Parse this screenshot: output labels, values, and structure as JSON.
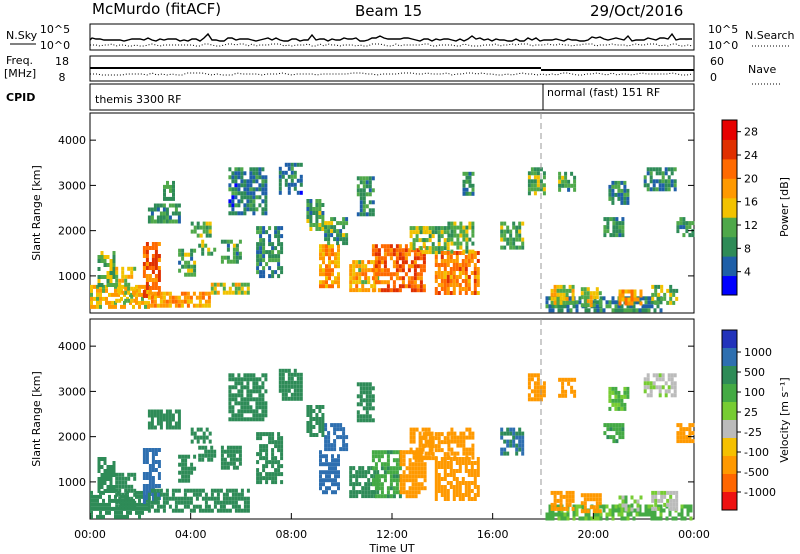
{
  "header": {
    "station": "McMurdo (fitACF)",
    "beam": "Beam 15",
    "date": "29/Oct/2016"
  },
  "summary_labels": {
    "nsky": "N.Sky",
    "freq": "Freq.",
    "freq_unit": "[MHz]",
    "cpid": "CPID",
    "nsearch": "N.Search",
    "nave": "Nave",
    "nsky_ticks": [
      "10^5",
      "10^0"
    ],
    "nsearch_ticks": [
      "10^5",
      "10^0"
    ],
    "freq_ticks": [
      "18",
      "8"
    ],
    "nave_ticks": [
      "60",
      "0"
    ],
    "cpid_segments": [
      {
        "label": "themis 3300 RF",
        "start_hour": 0
      },
      {
        "label": "normal (fast) 151 RF",
        "start_hour": 18.0
      }
    ]
  },
  "colors": {
    "power_scale": [
      "#0000ff",
      "#1e5fa8",
      "#2e8b57",
      "#4fa84a",
      "#f2c200",
      "#ff9900",
      "#ff6a00",
      "#e03000",
      "#e60000"
    ],
    "velocity_scale": [
      "#2233bb",
      "#2e6fb0",
      "#2e8b57",
      "#44aa44",
      "#77cc33",
      "#bbbbbb",
      "#f5c000",
      "#ff9900",
      "#ff6600",
      "#ee1111"
    ]
  },
  "chart_data": [
    {
      "type": "heatmap",
      "title": "",
      "xlabel": "",
      "ylabel": "Slant Range [km]",
      "xlim": [
        0,
        24
      ],
      "ylim": [
        180,
        4600
      ],
      "x_ticks": [],
      "y_ticks": [
        "1000",
        "2000",
        "3000",
        "4000"
      ],
      "colorbar": {
        "label": "Power [dB]",
        "ticks": [
          "4",
          "8",
          "12",
          "16",
          "20",
          "24",
          "28"
        ],
        "range": [
          0,
          30
        ]
      },
      "patches": [
        {
          "t0": 0.0,
          "t1": 2.3,
          "r0": 300,
          "r1": 800,
          "v": 16
        },
        {
          "t0": 0.3,
          "t1": 1.0,
          "r0": 800,
          "r1": 1550,
          "v": 12
        },
        {
          "t0": 1.0,
          "t1": 1.8,
          "r0": 450,
          "r1": 1200,
          "v": 14
        },
        {
          "t0": 2.1,
          "t1": 2.7,
          "r0": 600,
          "r1": 1750,
          "v": 22
        },
        {
          "t0": 2.3,
          "t1": 4.8,
          "r0": 350,
          "r1": 650,
          "v": 18
        },
        {
          "t0": 4.8,
          "t1": 6.3,
          "r0": 600,
          "r1": 850,
          "v": 14
        },
        {
          "t0": 3.5,
          "t1": 4.2,
          "r0": 1050,
          "r1": 1600,
          "v": 10
        },
        {
          "t0": 4.3,
          "t1": 4.9,
          "r0": 1500,
          "r1": 1800,
          "v": 12
        },
        {
          "t0": 5.2,
          "t1": 6.0,
          "r0": 1350,
          "r1": 1800,
          "v": 10
        },
        {
          "t0": 4.0,
          "t1": 4.8,
          "r0": 1850,
          "r1": 2200,
          "v": 11
        },
        {
          "t0": 2.3,
          "t1": 3.5,
          "r0": 2200,
          "r1": 2600,
          "v": 9
        },
        {
          "t0": 2.9,
          "t1": 3.3,
          "r0": 2700,
          "r1": 3100,
          "v": 8
        },
        {
          "t0": 5.5,
          "t1": 7.0,
          "r0": 2400,
          "r1": 3400,
          "v": 7
        },
        {
          "t0": 7.5,
          "t1": 8.4,
          "r0": 2800,
          "r1": 3500,
          "v": 7
        },
        {
          "t0": 6.6,
          "t1": 7.6,
          "r0": 1000,
          "r1": 2100,
          "v": 8
        },
        {
          "t0": 8.6,
          "t1": 9.2,
          "r0": 2000,
          "r1": 2700,
          "v": 10
        },
        {
          "t0": 9.1,
          "t1": 9.9,
          "r0": 800,
          "r1": 1700,
          "v": 18
        },
        {
          "t0": 9.3,
          "t1": 10.2,
          "r0": 1700,
          "r1": 2300,
          "v": 10
        },
        {
          "t0": 10.3,
          "t1": 11.4,
          "r0": 650,
          "r1": 1350,
          "v": 17
        },
        {
          "t0": 10.6,
          "t1": 11.2,
          "r0": 2400,
          "r1": 3200,
          "v": 9
        },
        {
          "t0": 11.2,
          "t1": 13.3,
          "r0": 700,
          "r1": 1700,
          "v": 22
        },
        {
          "t0": 12.7,
          "t1": 13.3,
          "r0": 1500,
          "r1": 2100,
          "v": 14
        },
        {
          "t0": 13.1,
          "t1": 14.2,
          "r0": 1500,
          "r1": 2100,
          "v": 11
        },
        {
          "t0": 13.7,
          "t1": 15.4,
          "r0": 650,
          "r1": 1550,
          "v": 20
        },
        {
          "t0": 14.2,
          "t1": 15.2,
          "r0": 1550,
          "r1": 2200,
          "v": 12
        },
        {
          "t0": 14.8,
          "t1": 15.2,
          "r0": 2800,
          "r1": 3300,
          "v": 9
        },
        {
          "t0": 16.3,
          "t1": 17.2,
          "r0": 1600,
          "r1": 2200,
          "v": 11
        },
        {
          "t0": 17.4,
          "t1": 18.1,
          "r0": 2800,
          "r1": 3400,
          "v": 10
        },
        {
          "t0": 18.1,
          "t1": 22.7,
          "r0": 200,
          "r1": 550,
          "v": 8
        },
        {
          "t0": 18.3,
          "t1": 19.2,
          "r0": 400,
          "r1": 800,
          "v": 14
        },
        {
          "t0": 19.5,
          "t1": 20.3,
          "r0": 350,
          "r1": 750,
          "v": 14
        },
        {
          "t0": 21.0,
          "t1": 21.9,
          "r0": 350,
          "r1": 700,
          "v": 18
        },
        {
          "t0": 22.3,
          "t1": 23.3,
          "r0": 400,
          "r1": 800,
          "v": 12
        },
        {
          "t0": 18.6,
          "t1": 19.3,
          "r0": 2900,
          "r1": 3300,
          "v": 10
        },
        {
          "t0": 20.6,
          "t1": 21.4,
          "r0": 2600,
          "r1": 3100,
          "v": 8
        },
        {
          "t0": 22.0,
          "t1": 23.2,
          "r0": 2900,
          "r1": 3400,
          "v": 8
        },
        {
          "t0": 23.3,
          "t1": 23.9,
          "r0": 1900,
          "r1": 2300,
          "v": 10
        },
        {
          "t0": 20.4,
          "t1": 21.2,
          "r0": 1900,
          "r1": 2300,
          "v": 9
        }
      ]
    },
    {
      "type": "heatmap",
      "title": "",
      "xlabel": "Time UT",
      "ylabel": "Slant Range [km]",
      "xlim": [
        0,
        24
      ],
      "ylim": [
        180,
        4600
      ],
      "x_ticks": [
        "00:00",
        "04:00",
        "08:00",
        "12:00",
        "16:00",
        "20:00",
        "00:00"
      ],
      "y_ticks": [
        "1000",
        "2000",
        "3000",
        "4000"
      ],
      "colorbar": {
        "label": "Velocity [m s⁻¹]",
        "ticks": [
          "1000",
          "500",
          "100",
          "25",
          "-25",
          "-100",
          "-500",
          "-1000"
        ]
      },
      "patches": [
        {
          "t0": 0.0,
          "t1": 2.3,
          "r0": 250,
          "r1": 800,
          "v": 150
        },
        {
          "t0": 0.3,
          "t1": 1.0,
          "r0": 800,
          "r1": 1550,
          "v": 200
        },
        {
          "t0": 1.0,
          "t1": 1.8,
          "r0": 450,
          "r1": 1200,
          "v": 300
        },
        {
          "t0": 2.1,
          "t1": 2.7,
          "r0": 600,
          "r1": 1750,
          "v": 700
        },
        {
          "t0": 2.3,
          "t1": 6.3,
          "r0": 350,
          "r1": 850,
          "v": 300
        },
        {
          "t0": 3.5,
          "t1": 4.2,
          "r0": 1050,
          "r1": 1600,
          "v": 300
        },
        {
          "t0": 4.3,
          "t1": 4.9,
          "r0": 1500,
          "r1": 1800,
          "v": 300
        },
        {
          "t0": 5.2,
          "t1": 6.0,
          "r0": 1350,
          "r1": 1800,
          "v": 200
        },
        {
          "t0": 4.0,
          "t1": 4.8,
          "r0": 1850,
          "r1": 2200,
          "v": 250
        },
        {
          "t0": 2.3,
          "t1": 3.5,
          "r0": 2200,
          "r1": 2600,
          "v": 300
        },
        {
          "t0": 5.5,
          "t1": 7.0,
          "r0": 2400,
          "r1": 3400,
          "v": 200
        },
        {
          "t0": 7.5,
          "t1": 8.4,
          "r0": 2800,
          "r1": 3500,
          "v": 200
        },
        {
          "t0": 6.6,
          "t1": 7.6,
          "r0": 1000,
          "r1": 2100,
          "v": 200
        },
        {
          "t0": 9.1,
          "t1": 9.9,
          "r0": 800,
          "r1": 1700,
          "v": 800
        },
        {
          "t0": 9.3,
          "t1": 10.2,
          "r0": 1700,
          "r1": 2300,
          "v": 600
        },
        {
          "t0": 8.6,
          "t1": 9.2,
          "r0": 2000,
          "r1": 2700,
          "v": 300
        },
        {
          "t0": 10.3,
          "t1": 11.4,
          "r0": 650,
          "r1": 1350,
          "v": 150
        },
        {
          "t0": 10.6,
          "t1": 11.2,
          "r0": 2400,
          "r1": 3200,
          "v": 200
        },
        {
          "t0": 11.2,
          "t1": 12.3,
          "r0": 700,
          "r1": 1700,
          "v": 80
        },
        {
          "t0": 12.3,
          "t1": 13.3,
          "r0": 700,
          "r1": 1700,
          "v": -200
        },
        {
          "t0": 12.7,
          "t1": 13.6,
          "r0": 1500,
          "r1": 2200,
          "v": -200
        },
        {
          "t0": 13.1,
          "t1": 14.2,
          "r0": 1500,
          "r1": 2100,
          "v": -150
        },
        {
          "t0": 13.7,
          "t1": 15.4,
          "r0": 650,
          "r1": 1550,
          "v": -400
        },
        {
          "t0": 14.2,
          "t1": 15.2,
          "r0": 1550,
          "r1": 2200,
          "v": -300
        },
        {
          "t0": 16.3,
          "t1": 17.2,
          "r0": 1600,
          "r1": 2200,
          "v": 500
        },
        {
          "t0": 17.4,
          "t1": 18.1,
          "r0": 2800,
          "r1": 3400,
          "v": -200
        },
        {
          "t0": 18.1,
          "t1": 23.9,
          "r0": 200,
          "r1": 500,
          "v": 60
        },
        {
          "t0": 18.3,
          "t1": 19.2,
          "r0": 400,
          "r1": 800,
          "v": -300
        },
        {
          "t0": 19.5,
          "t1": 20.3,
          "r0": 350,
          "r1": 750,
          "v": -300
        },
        {
          "t0": 21.0,
          "t1": 21.9,
          "r0": 350,
          "r1": 700,
          "v": 40
        },
        {
          "t0": 22.3,
          "t1": 23.3,
          "r0": 400,
          "r1": 800,
          "v": 10
        },
        {
          "t0": 18.6,
          "t1": 19.3,
          "r0": 2900,
          "r1": 3300,
          "v": -200
        },
        {
          "t0": 20.6,
          "t1": 21.4,
          "r0": 2600,
          "r1": 3100,
          "v": 60
        },
        {
          "t0": 22.0,
          "t1": 23.2,
          "r0": 2900,
          "r1": 3400,
          "v": 10
        },
        {
          "t0": 23.3,
          "t1": 23.9,
          "r0": 1900,
          "r1": 2300,
          "v": -150
        },
        {
          "t0": 20.4,
          "t1": 21.2,
          "r0": 1900,
          "r1": 2300,
          "v": 80
        }
      ]
    }
  ]
}
